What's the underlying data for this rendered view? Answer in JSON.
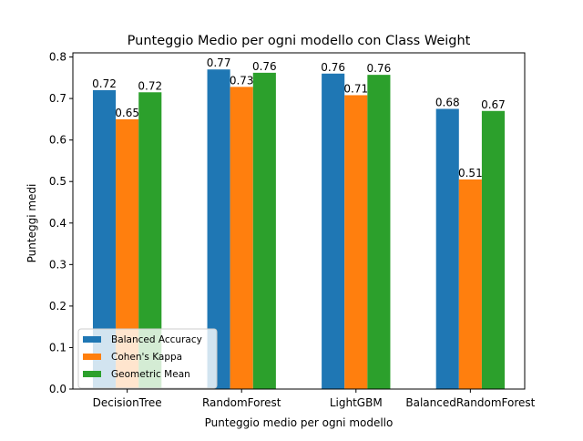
{
  "chart_data": {
    "type": "bar",
    "title": "Punteggio Medio per ogni modello con Class Weight",
    "xlabel": "Punteggio medio per ogni modello",
    "ylabel": "Punteggi medi",
    "categories": [
      "DecisionTree",
      "RandomForest",
      "LightGBM",
      "BalancedRandomForest"
    ],
    "series": [
      {
        "name": "Balanced Accuracy",
        "color": "#1f77b4",
        "values": [
          0.72,
          0.77,
          0.76,
          0.675
        ],
        "labels": [
          "0.72",
          "0.77",
          "0.76",
          "0.68"
        ]
      },
      {
        "name": "Cohen's Kappa",
        "color": "#ff7f0e",
        "values": [
          0.65,
          0.728,
          0.708,
          0.505
        ],
        "labels": [
          "0.65",
          "0.73",
          "0.71",
          "0.51"
        ]
      },
      {
        "name": "Geometric Mean",
        "color": "#2ca02c",
        "values": [
          0.715,
          0.762,
          0.757,
          0.67
        ],
        "labels": [
          "0.72",
          "0.76",
          "0.76",
          "0.67"
        ]
      }
    ],
    "ylim": [
      0,
      0.81
    ],
    "yticks": [
      0.0,
      0.1,
      0.2,
      0.3,
      0.4,
      0.5,
      0.6,
      0.7,
      0.8
    ],
    "ytick_labels": [
      "0.0",
      "0.1",
      "0.2",
      "0.3",
      "0.4",
      "0.5",
      "0.6",
      "0.7",
      "0.8"
    ],
    "grid": false,
    "legend_position": "lower-left"
  }
}
